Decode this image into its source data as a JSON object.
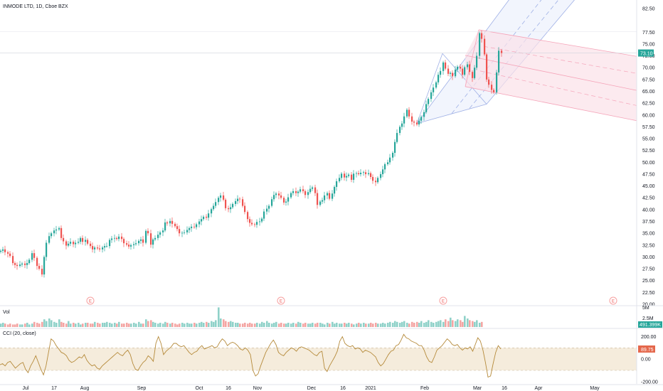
{
  "chart_data": {
    "type": "candlestick",
    "title": "INMODE LTD, 1D, Cboe BZX",
    "colors": {
      "up": "#26a69a",
      "down": "#ef5350",
      "pitchfork": "#9fb0e6",
      "channel": "#f5a3b8",
      "cci": "#b58a3a",
      "cci_band": "#f3e7d3"
    },
    "price_axis": {
      "ticks": [
        "82.50",
        "77.50",
        "75.00",
        "72.50",
        "70.00",
        "67.50",
        "65.00",
        "62.50",
        "60.00",
        "57.50",
        "55.00",
        "52.50",
        "50.00",
        "47.50",
        "45.00",
        "42.50",
        "40.00",
        "37.50",
        "35.00",
        "32.50",
        "30.00",
        "27.50",
        "25.00",
        "22.50",
        "20.00"
      ],
      "ylim": [
        20,
        82.5
      ],
      "last_price": "73.10"
    },
    "time_axis": {
      "labels": [
        "Jul",
        "17",
        "Aug",
        "Sep",
        "Oct",
        "16",
        "Nov",
        "Dec",
        "16",
        "2021",
        "Feb",
        "Mar",
        "16",
        "Apr",
        "May"
      ],
      "positions": [
        36,
        76,
        119,
        199,
        280,
        321,
        362,
        438,
        482,
        521,
        597,
        671,
        709,
        757,
        836
      ]
    },
    "series_close": [
      [
        0,
        31.3
      ],
      [
        3,
        31.6
      ],
      [
        6,
        31.0
      ],
      [
        10,
        30.7
      ],
      [
        13,
        30.2
      ],
      [
        17,
        28.7
      ],
      [
        20,
        28.3
      ],
      [
        23,
        28.1
      ],
      [
        27,
        28.4
      ],
      [
        30,
        28.6
      ],
      [
        34,
        28.3
      ],
      [
        37,
        28.7
      ],
      [
        40,
        29.4
      ],
      [
        44,
        30.8
      ],
      [
        47,
        29.8
      ],
      [
        51,
        28.1
      ],
      [
        54,
        27.5
      ],
      [
        58,
        26.3
      ],
      [
        61,
        30.0
      ],
      [
        64,
        33.0
      ],
      [
        68,
        34.4
      ],
      [
        71,
        35.0
      ],
      [
        75,
        35.6
      ],
      [
        78,
        35.8
      ],
      [
        82,
        36.1
      ],
      [
        85,
        34.0
      ],
      [
        88,
        33.3
      ],
      [
        92,
        32.4
      ],
      [
        95,
        32.8
      ],
      [
        98,
        33.2
      ],
      [
        102,
        32.7
      ],
      [
        105,
        33.0
      ],
      [
        109,
        33.2
      ],
      [
        112,
        34.0
      ],
      [
        115,
        33.2
      ],
      [
        119,
        33.6
      ],
      [
        122,
        32.8
      ],
      [
        126,
        32.3
      ],
      [
        129,
        31.6
      ],
      [
        132,
        32.0
      ],
      [
        136,
        31.8
      ],
      [
        139,
        31.6
      ],
      [
        143,
        32.0
      ],
      [
        146,
        32.3
      ],
      [
        149,
        32.3
      ],
      [
        153,
        33.6
      ],
      [
        156,
        33.9
      ],
      [
        160,
        34.0
      ],
      [
        163,
        33.8
      ],
      [
        166,
        34.3
      ],
      [
        170,
        33.8
      ],
      [
        173,
        32.9
      ],
      [
        177,
        32.6
      ],
      [
        180,
        32.2
      ],
      [
        183,
        32.5
      ],
      [
        187,
        32.7
      ],
      [
        190,
        32.9
      ],
      [
        194,
        33.4
      ],
      [
        197,
        33.7
      ],
      [
        200,
        33.0
      ],
      [
        204,
        35.5
      ],
      [
        207,
        35.0
      ],
      [
        211,
        32.6
      ],
      [
        214,
        33.7
      ],
      [
        217,
        34.0
      ],
      [
        221,
        34.7
      ],
      [
        224,
        35.2
      ],
      [
        228,
        35.6
      ],
      [
        231,
        37.3
      ],
      [
        234,
        37.1
      ],
      [
        238,
        37.6
      ],
      [
        241,
        37.0
      ],
      [
        245,
        36.5
      ],
      [
        248,
        35.9
      ],
      [
        251,
        35.0
      ],
      [
        255,
        35.1
      ],
      [
        258,
        35.2
      ],
      [
        262,
        35.7
      ],
      [
        265,
        36.1
      ],
      [
        268,
        36.4
      ],
      [
        272,
        36.3
      ],
      [
        275,
        36.9
      ],
      [
        279,
        37.5
      ],
      [
        282,
        38.0
      ],
      [
        285,
        38.5
      ],
      [
        289,
        38.3
      ],
      [
        292,
        39.2
      ],
      [
        296,
        40.1
      ],
      [
        299,
        40.8
      ],
      [
        302,
        41.6
      ],
      [
        306,
        42.5
      ],
      [
        309,
        43.0
      ],
      [
        313,
        42.1
      ],
      [
        316,
        40.3
      ],
      [
        320,
        40.1
      ],
      [
        323,
        40.5
      ],
      [
        326,
        41.2
      ],
      [
        330,
        41.8
      ],
      [
        333,
        42.3
      ],
      [
        336,
        42.2
      ],
      [
        340,
        40.8
      ],
      [
        343,
        39.5
      ],
      [
        347,
        38.0
      ],
      [
        350,
        37.2
      ],
      [
        353,
        36.9
      ],
      [
        357,
        36.8
      ],
      [
        360,
        37.4
      ],
      [
        364,
        37.5
      ],
      [
        367,
        38.1
      ],
      [
        370,
        39.6
      ],
      [
        374,
        40.2
      ],
      [
        377,
        40.8
      ],
      [
        381,
        42.2
      ],
      [
        384,
        43.1
      ],
      [
        387,
        43.4
      ],
      [
        391,
        43.0
      ],
      [
        394,
        42.5
      ],
      [
        398,
        41.5
      ],
      [
        401,
        41.7
      ],
      [
        404,
        42.6
      ],
      [
        408,
        43.5
      ],
      [
        411,
        43.9
      ],
      [
        415,
        43.5
      ],
      [
        418,
        43.8
      ],
      [
        421,
        44.3
      ],
      [
        425,
        43.9
      ],
      [
        428,
        43.1
      ],
      [
        432,
        43.7
      ],
      [
        435,
        44.4
      ],
      [
        438,
        44.7
      ],
      [
        442,
        43.5
      ],
      [
        445,
        41.0
      ],
      [
        449,
        41.7
      ],
      [
        452,
        42.0
      ],
      [
        455,
        43.0
      ],
      [
        459,
        43.5
      ],
      [
        462,
        42.3
      ],
      [
        466,
        43.4
      ],
      [
        469,
        44.8
      ],
      [
        472,
        46.0
      ],
      [
        476,
        46.7
      ],
      [
        479,
        47.6
      ],
      [
        483,
        46.8
      ],
      [
        486,
        47.1
      ],
      [
        489,
        47.4
      ],
      [
        493,
        46.3
      ],
      [
        496,
        47.6
      ],
      [
        500,
        47.7
      ],
      [
        503,
        47.5
      ],
      [
        506,
        47.8
      ],
      [
        510,
        47.9
      ],
      [
        513,
        47.5
      ],
      [
        517,
        47.7
      ],
      [
        520,
        46.9
      ],
      [
        523,
        46.1
      ],
      [
        527,
        45.8
      ],
      [
        530,
        46.7
      ],
      [
        534,
        47.5
      ],
      [
        537,
        48.5
      ],
      [
        540,
        49.6
      ],
      [
        544,
        50.0
      ],
      [
        547,
        51.0
      ],
      [
        551,
        52.0
      ],
      [
        554,
        54.3
      ],
      [
        557,
        56.2
      ],
      [
        561,
        57.5
      ],
      [
        564,
        58.2
      ],
      [
        567,
        59.7
      ],
      [
        571,
        61.1
      ],
      [
        574,
        59.7
      ],
      [
        578,
        58.6
      ],
      [
        581,
        58.4
      ],
      [
        585,
        58.0
      ],
      [
        588,
        58.8
      ],
      [
        591,
        59.6
      ],
      [
        595,
        60.6
      ],
      [
        598,
        62.3
      ],
      [
        601,
        63.4
      ],
      [
        605,
        64.8
      ],
      [
        608,
        65.8
      ],
      [
        612,
        66.9
      ],
      [
        615,
        68.5
      ],
      [
        618,
        69.3
      ],
      [
        622,
        71.1
      ],
      [
        625,
        69.8
      ],
      [
        629,
        68.7
      ],
      [
        632,
        68.9
      ],
      [
        635,
        68.2
      ],
      [
        639,
        69.6
      ],
      [
        642,
        70.2
      ],
      [
        646,
        69.8
      ],
      [
        649,
        68.5
      ],
      [
        652,
        70.1
      ],
      [
        656,
        70.7
      ],
      [
        659,
        69.1
      ],
      [
        663,
        67.8
      ],
      [
        666,
        70.0
      ],
      [
        669,
        72.5
      ],
      [
        673,
        77.3
      ],
      [
        676,
        76.1
      ],
      [
        680,
        72.8
      ],
      [
        683,
        67.5
      ],
      [
        686,
        66.4
      ],
      [
        690,
        65.3
      ],
      [
        693,
        64.8
      ],
      [
        697,
        69.0
      ],
      [
        700,
        73.6
      ],
      [
        704,
        73.1
      ]
    ],
    "volume": {
      "label": "Vol",
      "axis": [
        "5M",
        "2.5M"
      ],
      "last": "491.399K",
      "values": [
        0.4,
        0.5,
        0.4,
        0.3,
        0.4,
        0.3,
        0.3,
        0.4,
        0.3,
        0.3,
        0.4,
        0.5,
        0.3,
        0.4,
        0.6,
        0.5,
        0.4,
        0.6,
        0.9,
        0.7,
        1.0,
        0.8,
        0.6,
        0.5,
        0.9,
        0.6,
        0.5,
        0.4,
        0.7,
        0.4,
        0.5,
        0.4,
        0.5,
        0.3,
        0.4,
        0.5,
        0.5,
        0.4,
        0.4,
        0.6,
        0.5,
        0.4,
        0.5,
        0.5,
        0.6,
        0.5,
        0.4,
        0.5,
        0.4,
        0.6,
        0.4,
        0.4,
        0.5,
        0.4,
        0.4,
        0.5,
        0.4,
        0.6,
        0.4,
        0.4,
        0.9,
        0.7,
        0.8,
        0.6,
        0.5,
        0.4,
        0.5,
        0.4,
        0.6,
        0.5,
        0.4,
        0.5,
        0.4,
        0.3,
        0.4,
        0.5,
        0.4,
        0.5,
        0.4,
        0.4,
        0.5,
        0.4,
        0.5,
        0.6,
        0.5,
        0.6,
        0.5,
        0.7,
        0.6,
        0.8,
        2.3,
        1.0,
        0.9,
        0.7,
        0.6,
        0.7,
        0.6,
        0.5,
        0.5,
        0.4,
        0.4,
        0.5,
        0.4,
        0.5,
        0.4,
        0.4,
        0.5,
        0.4,
        0.6,
        0.5,
        0.7,
        0.5,
        0.4,
        0.5,
        0.6,
        0.4,
        0.5,
        0.4,
        0.4,
        0.5,
        0.4,
        0.5,
        0.4,
        0.6,
        0.5,
        0.4,
        0.5,
        0.4,
        0.4,
        0.5,
        0.4,
        0.5,
        0.5,
        0.4,
        0.3,
        0.5,
        0.4,
        0.6,
        0.4,
        0.5,
        0.4,
        0.4,
        0.5,
        0.4,
        0.5,
        0.4,
        0.3,
        0.4,
        0.5,
        0.4,
        0.5,
        0.4,
        0.4,
        0.5,
        0.4,
        0.5,
        0.4,
        0.4,
        0.5,
        0.4,
        0.5,
        0.6,
        0.5,
        0.7,
        0.6,
        0.5,
        0.6,
        0.7,
        0.5,
        0.4,
        0.6,
        0.5,
        0.6,
        0.5,
        0.7,
        0.5,
        0.6,
        0.8,
        0.6,
        0.5,
        0.6,
        0.7,
        0.8,
        0.6,
        0.9,
        0.7,
        1.1,
        0.8,
        0.7,
        0.9,
        0.8,
        0.6,
        1.3,
        1.0,
        0.8,
        0.7,
        0.6,
        0.8,
        0.5,
        0.6
      ]
    },
    "cci": {
      "label": "CCI (20, close)",
      "axis": [
        "200.00",
        "0.00",
        "-200.00"
      ],
      "band": [
        100,
        -100
      ],
      "last": "89.75",
      "values": [
        -50,
        -40,
        -60,
        -30,
        -20,
        -50,
        -80,
        -60,
        -40,
        -30,
        -90,
        -120,
        -60,
        -20,
        30,
        -30,
        -90,
        -140,
        -60,
        60,
        180,
        160,
        120,
        90,
        60,
        50,
        30,
        -10,
        -30,
        -20,
        0,
        20,
        10,
        40,
        -10,
        -40,
        -60,
        -50,
        -80,
        -90,
        -60,
        -40,
        -20,
        0,
        20,
        40,
        60,
        40,
        30,
        60,
        80,
        40,
        -40,
        -90,
        -100,
        -60,
        -30,
        -10,
        30,
        10,
        -20,
        140,
        200,
        140,
        40,
        70,
        90,
        110,
        140,
        140,
        120,
        110,
        120,
        90,
        60,
        40,
        60,
        70,
        100,
        120,
        90,
        100,
        110,
        120,
        100,
        110,
        150,
        180,
        160,
        120,
        140,
        150,
        140,
        120,
        90,
        80,
        100,
        80,
        40,
        -100,
        -150,
        -130,
        -60,
        0,
        60,
        100,
        140,
        170,
        130,
        60,
        40,
        30,
        60,
        80,
        100,
        90,
        70,
        100,
        110,
        100,
        90,
        80,
        60,
        40,
        30,
        60,
        70,
        -80,
        -110,
        -60,
        -20,
        20,
        70,
        160,
        200,
        140,
        120,
        110,
        120,
        90,
        100,
        90,
        60,
        80,
        70,
        60,
        40,
        20,
        -30,
        -60,
        -40,
        0,
        40,
        70,
        80,
        120,
        130,
        170,
        220,
        190,
        180,
        160,
        150,
        140,
        120,
        120,
        80,
        20,
        -20,
        -30,
        20,
        80,
        100,
        120,
        150,
        180,
        160,
        130,
        120,
        130,
        100,
        80,
        100,
        90,
        110,
        70,
        130,
        190,
        160,
        80,
        -30,
        -160,
        -150,
        -40,
        60,
        120,
        90
      ]
    }
  }
}
